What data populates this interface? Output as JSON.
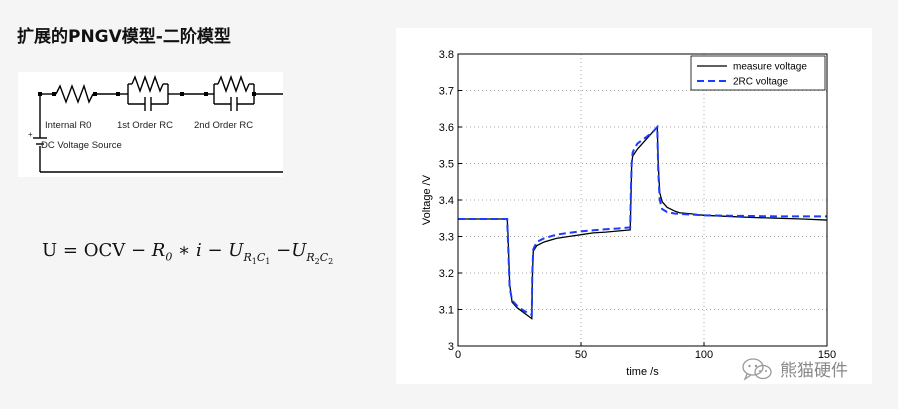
{
  "slide": {
    "title": "扩展的PNGV模型-二阶模型"
  },
  "circuit": {
    "labels": {
      "r0": "Internal R0",
      "rc1": "1st Order RC",
      "rc2": "2nd Order RC",
      "source": "DC Voltage Source",
      "plus": "+"
    }
  },
  "formula": {
    "lhs": "U = OCV − ",
    "r0": "R",
    "r0_sub": "0",
    "mid": " ∗ ",
    "i": "i",
    "minus1": " − ",
    "u1": "U",
    "r1": "R",
    "r1_sub": "1",
    "c1": "C",
    "c1_sub": "1",
    "minus2": " −",
    "u2": "U",
    "r2": "R",
    "r2_sub": "2",
    "c2": "C",
    "c2_sub": "2"
  },
  "chart_data": {
    "type": "line",
    "xlabel": "time /s",
    "ylabel": "Voltage /V",
    "xlim": [
      0,
      150
    ],
    "ylim": [
      3.0,
      3.8
    ],
    "xticks": [
      "0",
      "50",
      "100",
      "150"
    ],
    "yticks": [
      "3",
      "3.1",
      "3.2",
      "3.3",
      "3.4",
      "3.5",
      "3.6",
      "3.7",
      "3.8"
    ],
    "grid": "dotted",
    "legend_position": "top-right",
    "series": [
      {
        "name": "measure voltage",
        "color": "#000000",
        "style": "solid",
        "x": [
          0,
          20,
          20.3,
          21,
          22,
          24,
          26,
          28,
          30,
          30.2,
          30.6,
          32,
          35,
          40,
          45,
          50,
          55,
          60,
          65,
          70,
          70.3,
          70.6,
          71,
          72,
          73,
          75,
          77,
          79,
          81,
          81.4,
          82,
          83,
          85,
          88,
          90,
          95,
          100,
          110,
          120,
          130,
          140,
          150
        ],
        "y": [
          3.348,
          3.348,
          3.31,
          3.17,
          3.12,
          3.105,
          3.095,
          3.085,
          3.075,
          3.18,
          3.26,
          3.275,
          3.285,
          3.295,
          3.3,
          3.305,
          3.31,
          3.312,
          3.315,
          3.318,
          3.4,
          3.5,
          3.52,
          3.53,
          3.54,
          3.555,
          3.57,
          3.585,
          3.6,
          3.5,
          3.42,
          3.395,
          3.38,
          3.37,
          3.365,
          3.362,
          3.358,
          3.355,
          3.352,
          3.35,
          3.348,
          3.345
        ]
      },
      {
        "name": "2RC voltage",
        "color": "#1a3cff",
        "style": "dashed",
        "x": [
          0,
          20,
          20.3,
          21,
          22,
          24,
          26,
          28,
          30,
          30.2,
          30.6,
          32,
          35,
          40,
          45,
          50,
          55,
          60,
          65,
          70,
          70.3,
          70.6,
          71,
          72,
          73,
          75,
          77,
          79,
          81,
          81.4,
          82,
          83,
          85,
          88,
          90,
          95,
          100,
          110,
          120,
          130,
          140,
          150
        ],
        "y": [
          3.348,
          3.348,
          3.29,
          3.16,
          3.125,
          3.11,
          3.1,
          3.092,
          3.085,
          3.2,
          3.265,
          3.285,
          3.295,
          3.305,
          3.31,
          3.314,
          3.317,
          3.32,
          3.322,
          3.325,
          3.43,
          3.5,
          3.53,
          3.545,
          3.555,
          3.565,
          3.575,
          3.585,
          3.6,
          3.48,
          3.4,
          3.375,
          3.367,
          3.363,
          3.362,
          3.36,
          3.358,
          3.357,
          3.356,
          3.355,
          3.355,
          3.355
        ]
      }
    ]
  },
  "watermark": {
    "icon": "wechat-icon",
    "text": "熊猫硬件"
  }
}
